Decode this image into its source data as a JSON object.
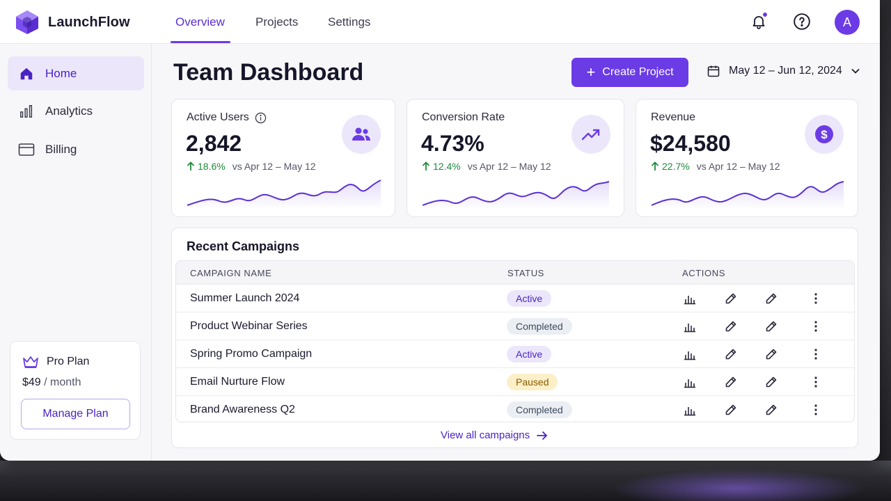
{
  "app": {
    "name": "LaunchFlow"
  },
  "nav": {
    "tabs": [
      {
        "label": "Overview",
        "active": true
      },
      {
        "label": "Projects",
        "active": false
      },
      {
        "label": "Settings",
        "active": false
      }
    ]
  },
  "header": {
    "notification_icon": "bell-icon",
    "help_icon": "help-icon",
    "avatar_initial": "A"
  },
  "sidebar": {
    "items": [
      {
        "label": "Home",
        "icon": "home-icon",
        "active": true
      },
      {
        "label": "Analytics",
        "icon": "bar-chart-icon",
        "active": false
      },
      {
        "label": "Billing",
        "icon": "credit-card-icon",
        "active": false
      }
    ],
    "plan": {
      "name": "Pro Plan",
      "price": "$49",
      "period": "/ month",
      "button_label": "Manage Plan"
    }
  },
  "main": {
    "title": "Team Dashboard",
    "create_button_label": "Create Project",
    "date_range": "May 12 – Jun 12, 2024"
  },
  "stats": [
    {
      "label": "Active Users",
      "value": "2,842",
      "change": "18.6%",
      "comparison": "vs Apr 12 – May 12",
      "icon": "users-icon",
      "has_info_icon": true
    },
    {
      "label": "Conversion Rate",
      "value": "4.73%",
      "change": "12.4%",
      "comparison": "vs Apr 12 – May 12",
      "icon": "trending-up-icon",
      "has_info_icon": false
    },
    {
      "label": "Revenue",
      "value": "$24,580",
      "change": "22.7%",
      "comparison": "vs Apr 12 – May 12",
      "icon": "dollar-icon",
      "has_info_icon": false
    }
  ],
  "campaigns": {
    "title": "Recent Campaigns",
    "columns": [
      "CAMPAIGN NAME",
      "STATUS",
      "ACTIONS"
    ],
    "rows": [
      {
        "name": "Summer Launch 2024",
        "status": "Active"
      },
      {
        "name": "Product Webinar Series",
        "status": "Completed"
      },
      {
        "name": "Spring Promo Campaign",
        "status": "Active"
      },
      {
        "name": "Email Nurture Flow",
        "status": "Paused"
      },
      {
        "name": "Brand Awareness Q2",
        "status": "Completed"
      }
    ],
    "row_actions": [
      "bar-chart-icon",
      "edit-icon",
      "edit-icon",
      "more-vertical-icon"
    ],
    "view_all_label": "View all campaigns"
  },
  "colors": {
    "accent": "#6b3be6",
    "accent_light": "#ece6fb",
    "positive": "#1f8a3a",
    "paused_bg": "#fdf0c8"
  }
}
